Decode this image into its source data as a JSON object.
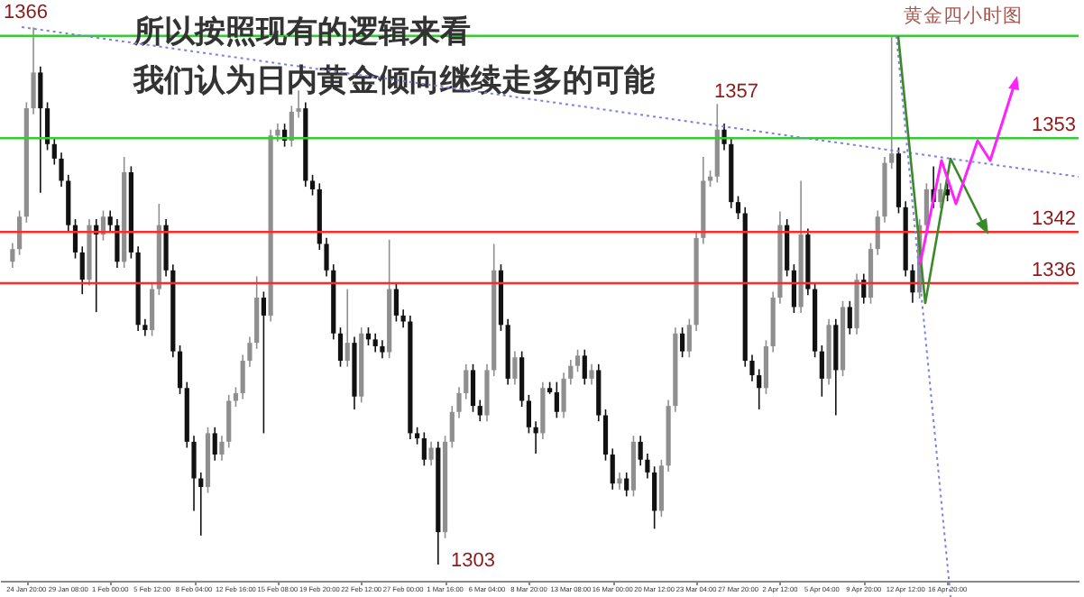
{
  "chart_data": {
    "type": "candlestick",
    "title": "黄金四小时图",
    "annotations": [
      "所以按照现有的逻辑来看",
      "我们认为日内黄金倾向继续走多的可能",
      "1366",
      "1357",
      "1303"
    ],
    "categories": [
      null,
      null,
      "24 Jan 20:00",
      null,
      null,
      null,
      null,
      null,
      "29 Jan 08:00",
      null,
      null,
      null,
      null,
      null,
      "1 Feb 00:00",
      null,
      null,
      null,
      null,
      null,
      "5 Feb 12:00",
      null,
      null,
      null,
      null,
      null,
      "8 Feb 04:00",
      null,
      null,
      null,
      null,
      null,
      "12 Feb 16:00",
      null,
      null,
      null,
      null,
      null,
      "15 Feb 08:00",
      null,
      null,
      null,
      null,
      null,
      "19 Feb 20:00",
      null,
      null,
      null,
      null,
      null,
      "22 Feb 12:00",
      null,
      null,
      null,
      null,
      null,
      "27 Feb 00:00",
      null,
      null,
      null,
      null,
      null,
      "1 Mar 16:00",
      null,
      null,
      null,
      null,
      null,
      "6 Mar 04:00",
      null,
      null,
      null,
      null,
      null,
      "8 Mar 20:00",
      null,
      null,
      null,
      null,
      null,
      "13 Mar 08:00",
      null,
      null,
      null,
      null,
      null,
      "16 Mar 00:00",
      null,
      null,
      null,
      null,
      null,
      "20 Mar 12:00",
      null,
      null,
      null,
      null,
      null,
      "23 Mar 04:00",
      null,
      null,
      null,
      null,
      null,
      "27 Mar 20:00",
      null,
      null,
      null,
      null,
      null,
      "2 Apr 12:00",
      null,
      null,
      null,
      null,
      null,
      "5 Apr 04:00",
      null,
      null,
      null,
      null,
      null,
      "9 Apr 20:00",
      null,
      null,
      null,
      null,
      null,
      "12 Apr 12:00",
      null,
      null,
      null,
      null,
      null,
      "16 Apr 20:00",
      null,
      null,
      null,
      null,
      null,
      null,
      null,
      null,
      null,
      null,
      null,
      null,
      null,
      null,
      null,
      null,
      null
    ],
    "ohlc": [
      [
        1338.5,
        1340.7,
        1337.8,
        1340.0
      ],
      [
        1340.0,
        1344.5,
        1339.3,
        1343.8
      ],
      [
        1343.8,
        1357.2,
        1343.1,
        1356.5
      ],
      [
        1356.5,
        1366.0,
        1355.8,
        1360.7
      ],
      [
        1360.7,
        1361.4,
        1346.6,
        1356.5
      ],
      [
        1356.5,
        1357.2,
        1351.6,
        1352.3
      ],
      [
        1352.3,
        1353.0,
        1349.9,
        1350.6
      ],
      [
        1350.6,
        1351.3,
        1347.3,
        1348.0
      ],
      [
        1348.0,
        1348.7,
        1342.1,
        1342.8
      ],
      [
        1342.8,
        1343.5,
        1338.9,
        1339.6
      ],
      [
        1339.6,
        1340.3,
        1334.7,
        1336.4
      ],
      [
        1336.4,
        1343.5,
        1335.7,
        1342.8
      ],
      [
        1342.8,
        1343.5,
        1332.6,
        1341.7
      ],
      [
        1341.7,
        1344.5,
        1341.0,
        1343.8
      ],
      [
        1343.8,
        1344.5,
        1342.1,
        1342.8
      ],
      [
        1342.8,
        1343.5,
        1337.8,
        1338.5
      ],
      [
        1338.5,
        1350.8,
        1337.8,
        1349.0
      ],
      [
        1349.0,
        1349.7,
        1338.9,
        1339.6
      ],
      [
        1339.6,
        1340.3,
        1330.4,
        1331.1
      ],
      [
        1331.1,
        1331.8,
        1329.8,
        1330.5
      ],
      [
        1330.5,
        1336.0,
        1329.8,
        1335.3
      ],
      [
        1335.3,
        1345.3,
        1334.6,
        1342.8
      ],
      [
        1342.8,
        1343.5,
        1336.8,
        1337.5
      ],
      [
        1337.5,
        1338.2,
        1327.3,
        1328.0
      ],
      [
        1328.0,
        1328.7,
        1323.0,
        1323.7
      ],
      [
        1323.7,
        1324.4,
        1316.7,
        1317.4
      ],
      [
        1317.4,
        1318.1,
        1309.3,
        1313.1
      ],
      [
        1313.1,
        1313.8,
        1306.4,
        1312.1
      ],
      [
        1312.1,
        1319.1,
        1311.4,
        1318.4
      ],
      [
        1318.4,
        1319.1,
        1315.2,
        1315.9
      ],
      [
        1315.9,
        1318.1,
        1315.2,
        1317.4
      ],
      [
        1317.4,
        1322.9,
        1316.7,
        1322.2
      ],
      [
        1322.2,
        1323.8,
        1321.5,
        1323.1
      ],
      [
        1323.1,
        1327.6,
        1322.4,
        1326.9
      ],
      [
        1326.9,
        1329.7,
        1326.2,
        1329.0
      ],
      [
        1329.0,
        1336.8,
        1328.3,
        1334.3
      ],
      [
        1334.3,
        1335.0,
        1318.4,
        1332.2
      ],
      [
        1332.2,
        1354.0,
        1331.5,
        1353.3
      ],
      [
        1353.3,
        1354.7,
        1352.6,
        1354.0
      ],
      [
        1354.0,
        1354.7,
        1352.0,
        1352.7
      ],
      [
        1352.7,
        1356.8,
        1352.0,
        1356.1
      ],
      [
        1356.1,
        1358.6,
        1355.4,
        1356.5
      ],
      [
        1356.5,
        1357.2,
        1347.3,
        1348.0
      ],
      [
        1348.0,
        1348.7,
        1346.3,
        1347.0
      ],
      [
        1347.0,
        1347.7,
        1339.9,
        1340.6
      ],
      [
        1340.6,
        1341.3,
        1336.8,
        1337.5
      ],
      [
        1337.5,
        1338.2,
        1329.4,
        1330.1
      ],
      [
        1330.1,
        1330.8,
        1326.2,
        1326.9
      ],
      [
        1326.9,
        1335.3,
        1326.2,
        1329.0
      ],
      [
        1329.0,
        1329.7,
        1321.2,
        1322.7
      ],
      [
        1322.7,
        1330.8,
        1322.0,
        1330.1
      ],
      [
        1330.1,
        1330.8,
        1328.7,
        1329.4
      ],
      [
        1329.4,
        1330.1,
        1327.9,
        1328.6
      ],
      [
        1328.6,
        1329.3,
        1327.2,
        1327.9
      ],
      [
        1327.9,
        1341.1,
        1327.2,
        1335.3
      ],
      [
        1335.3,
        1336.0,
        1331.5,
        1332.2
      ],
      [
        1332.2,
        1332.9,
        1330.8,
        1331.5
      ],
      [
        1331.5,
        1332.2,
        1317.7,
        1318.4
      ],
      [
        1318.4,
        1319.1,
        1317.1,
        1317.8
      ],
      [
        1317.8,
        1318.5,
        1314.6,
        1315.3
      ],
      [
        1315.3,
        1317.4,
        1314.6,
        1316.7
      ],
      [
        1316.7,
        1317.4,
        1303.0,
        1306.8
      ],
      [
        1306.8,
        1318.1,
        1306.1,
        1317.4
      ],
      [
        1317.4,
        1321.6,
        1316.7,
        1320.9
      ],
      [
        1320.9,
        1323.8,
        1320.2,
        1323.1
      ],
      [
        1323.1,
        1326.5,
        1322.4,
        1325.8
      ],
      [
        1325.8,
        1326.5,
        1320.9,
        1321.6
      ],
      [
        1321.6,
        1322.3,
        1319.8,
        1320.5
      ],
      [
        1320.5,
        1326.5,
        1319.8,
        1325.8
      ],
      [
        1325.8,
        1340.6,
        1325.1,
        1337.5
      ],
      [
        1337.5,
        1338.2,
        1330.4,
        1331.1
      ],
      [
        1331.1,
        1331.8,
        1324.1,
        1324.8
      ],
      [
        1324.8,
        1328.0,
        1324.1,
        1327.3
      ],
      [
        1327.3,
        1328.0,
        1321.5,
        1322.2
      ],
      [
        1322.2,
        1322.9,
        1318.4,
        1319.1
      ],
      [
        1319.1,
        1319.8,
        1316.0,
        1318.4
      ],
      [
        1318.4,
        1324.4,
        1317.7,
        1323.7
      ],
      [
        1323.7,
        1324.4,
        1323.0,
        1323.2
      ],
      [
        1323.2,
        1324.4,
        1320.2,
        1320.9
      ],
      [
        1320.9,
        1325.5,
        1320.2,
        1324.8
      ],
      [
        1324.8,
        1327.0,
        1324.1,
        1326.3
      ],
      [
        1326.3,
        1328.2,
        1325.6,
        1327.5
      ],
      [
        1327.5,
        1328.2,
        1324.1,
        1324.8
      ],
      [
        1324.8,
        1326.5,
        1324.1,
        1325.8
      ],
      [
        1325.8,
        1326.5,
        1319.8,
        1320.5
      ],
      [
        1320.5,
        1321.2,
        1315.2,
        1315.9
      ],
      [
        1315.9,
        1316.6,
        1311.8,
        1312.5
      ],
      [
        1312.5,
        1313.8,
        1311.8,
        1313.1
      ],
      [
        1313.1,
        1313.8,
        1311.0,
        1311.7
      ],
      [
        1311.7,
        1318.1,
        1311.0,
        1317.4
      ],
      [
        1317.4,
        1318.1,
        1314.6,
        1315.3
      ],
      [
        1315.3,
        1316.0,
        1313.1,
        1313.8
      ],
      [
        1313.8,
        1314.5,
        1307.2,
        1309.3
      ],
      [
        1309.3,
        1315.3,
        1308.6,
        1314.6
      ],
      [
        1314.6,
        1322.3,
        1313.9,
        1321.6
      ],
      [
        1321.6,
        1330.8,
        1320.9,
        1330.1
      ],
      [
        1330.1,
        1330.8,
        1327.3,
        1328.0
      ],
      [
        1328.0,
        1331.8,
        1327.3,
        1331.1
      ],
      [
        1331.1,
        1342.0,
        1330.4,
        1341.3
      ],
      [
        1341.3,
        1350.8,
        1340.6,
        1348.0
      ],
      [
        1348.0,
        1349.2,
        1347.3,
        1348.5
      ],
      [
        1348.5,
        1357.0,
        1347.8,
        1354.0
      ],
      [
        1354.0,
        1354.7,
        1351.6,
        1352.3
      ],
      [
        1352.3,
        1353.0,
        1344.8,
        1345.5
      ],
      [
        1345.5,
        1346.2,
        1343.5,
        1344.2
      ],
      [
        1344.2,
        1344.9,
        1326.2,
        1326.9
      ],
      [
        1326.9,
        1327.6,
        1324.5,
        1325.2
      ],
      [
        1325.2,
        1325.9,
        1321.2,
        1323.7
      ],
      [
        1323.7,
        1329.3,
        1323.0,
        1328.6
      ],
      [
        1328.6,
        1335.0,
        1327.9,
        1334.3
      ],
      [
        1334.3,
        1344.4,
        1333.6,
        1342.8
      ],
      [
        1342.8,
        1343.5,
        1336.8,
        1337.5
      ],
      [
        1337.5,
        1338.2,
        1332.5,
        1333.2
      ],
      [
        1333.2,
        1348.0,
        1332.5,
        1341.7
      ],
      [
        1341.7,
        1342.4,
        1334.6,
        1335.3
      ],
      [
        1335.3,
        1336.0,
        1327.3,
        1328.0
      ],
      [
        1328.0,
        1328.7,
        1322.7,
        1324.8
      ],
      [
        1324.8,
        1331.8,
        1324.1,
        1331.1
      ],
      [
        1331.1,
        1331.8,
        1320.5,
        1325.8
      ],
      [
        1325.8,
        1333.9,
        1325.1,
        1333.2
      ],
      [
        1333.2,
        1333.9,
        1330.0,
        1330.7
      ],
      [
        1330.7,
        1337.1,
        1330.0,
        1336.4
      ],
      [
        1336.4,
        1337.1,
        1333.6,
        1334.3
      ],
      [
        1334.3,
        1340.7,
        1333.6,
        1340.0
      ],
      [
        1340.0,
        1344.5,
        1339.3,
        1343.8
      ],
      [
        1343.8,
        1350.8,
        1343.1,
        1350.1
      ],
      [
        1350.1,
        1364.9,
        1349.4,
        1351.2
      ],
      [
        1351.2,
        1351.9,
        1344.2,
        1344.9
      ],
      [
        1344.9,
        1345.6,
        1336.8,
        1337.5
      ],
      [
        1337.5,
        1338.2,
        1333.7,
        1334.9
      ],
      [
        1334.9,
        1343.5,
        1334.2,
        1342.8
      ],
      [
        1342.8,
        1347.7,
        1342.1,
        1347.0
      ],
      [
        1347.0,
        1349.7,
        1344.8,
        1345.5
      ],
      [
        1345.5,
        1347.7,
        1344.8,
        1347.0
      ],
      [
        1347.0,
        1347.7,
        1345.6,
        1346.3
      ],
      null,
      null,
      null,
      null,
      null,
      null,
      null,
      null,
      null,
      null,
      null,
      null,
      null,
      null,
      null,
      null,
      null
    ],
    "ylim": [
      1301.1,
      1369.2
    ],
    "ref_lines": [
      {
        "axis": "y",
        "value": 1365,
        "color": "#33cc33"
      },
      {
        "axis": "y",
        "value": 1353,
        "label": "1353",
        "color": "#33cc33"
      },
      {
        "axis": "y",
        "value": 1342,
        "label": "1342",
        "color": "#ff2a2a"
      },
      {
        "axis": "y",
        "value": 1336,
        "label": "1336",
        "color": "#ff2a2a"
      }
    ],
    "tick_labels": "x"
  }
}
